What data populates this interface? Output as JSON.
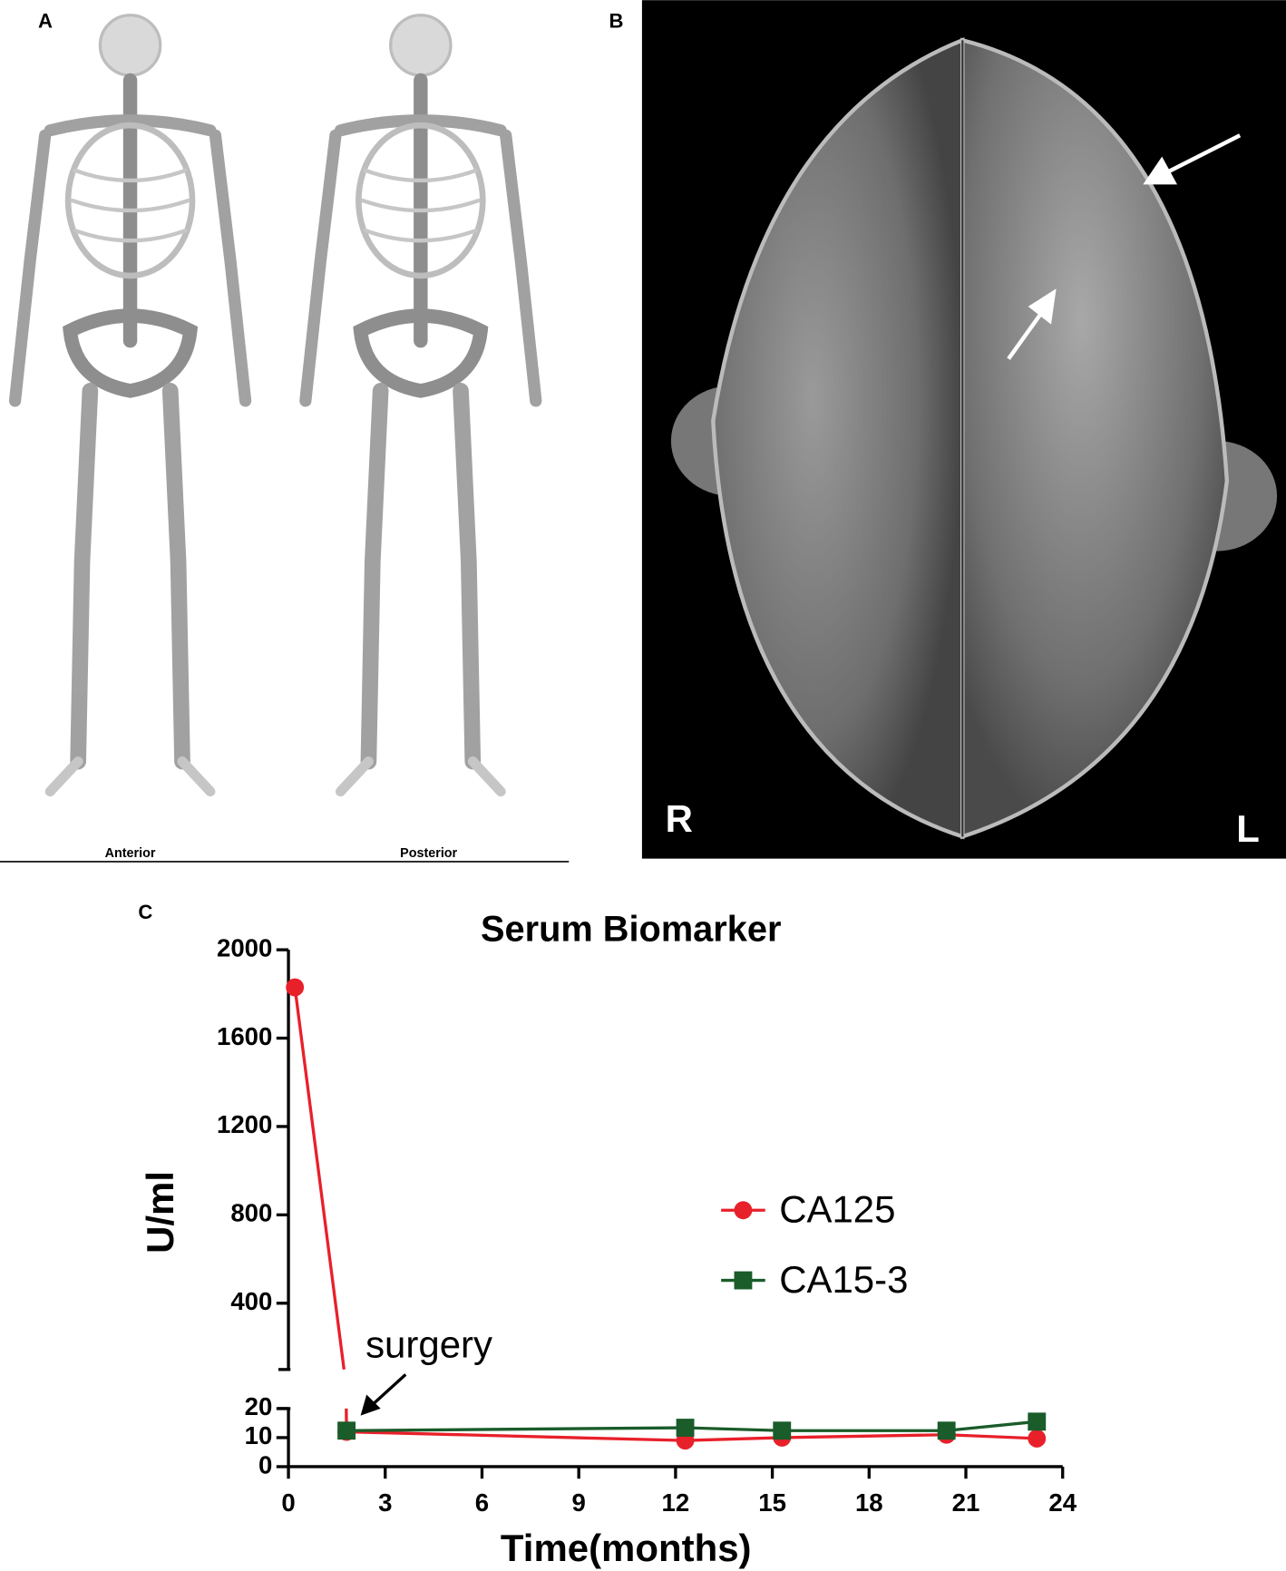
{
  "panels": {
    "a": {
      "label": "A",
      "views": [
        "Anterior",
        "Posterior"
      ]
    },
    "b": {
      "label": "B",
      "sides": [
        "R",
        "L"
      ]
    },
    "c": {
      "label": "C"
    }
  },
  "chart_data": {
    "type": "line",
    "title": "Serum Biomarker",
    "y_label": "U/ml",
    "x_label": "Time(months)",
    "annotation": "surgery",
    "x": [
      0.2,
      1.8,
      12.3,
      15.3,
      20.4,
      23.2
    ],
    "xlim": [
      0,
      24
    ],
    "xticks": [
      0,
      3,
      6,
      9,
      12,
      15,
      18,
      21,
      24
    ],
    "y_segments": [
      {
        "ylim": [
          0,
          20
        ],
        "yticks": [
          0,
          10,
          20
        ]
      },
      {
        "ylim": [
          100,
          2000
        ],
        "yticks": [
          400,
          800,
          1200,
          1600,
          2000
        ]
      }
    ],
    "series": [
      {
        "name": "CA125",
        "color": "#e8202a",
        "marker": "circle",
        "values": [
          1830,
          12,
          9,
          10,
          11,
          9.7
        ]
      },
      {
        "name": "CA15-3",
        "color": "#1a5c2a",
        "marker": "square",
        "values": [
          null,
          12.4,
          13.4,
          12.4,
          12.4,
          15.5
        ]
      }
    ]
  }
}
